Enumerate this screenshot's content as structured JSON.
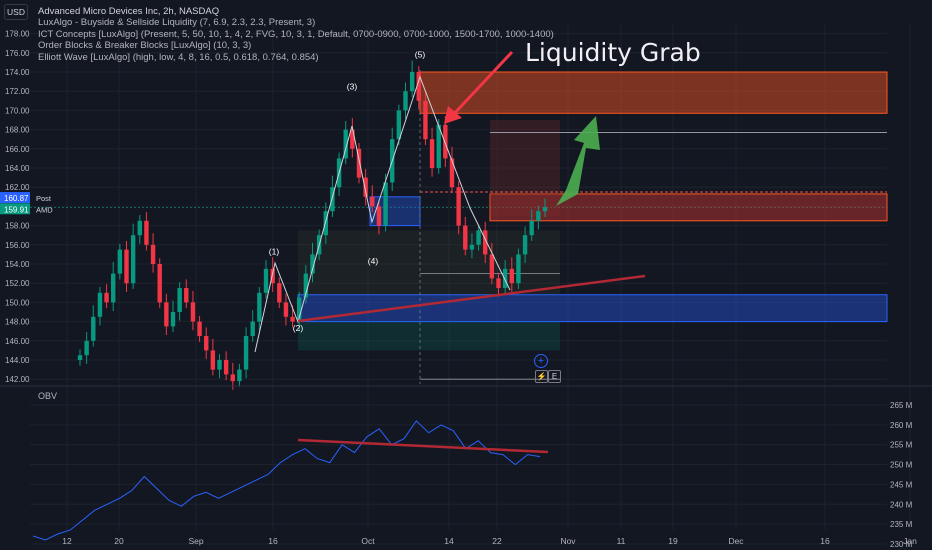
{
  "header": {
    "currency": "USD",
    "title": "Advanced Micro Devices Inc, 2h, NASDAQ",
    "indicators": [
      "LuxAlgo - Buyside & Sellside Liquidity (7, 6.9, 2.3, 2.3, Present, 3)",
      "ICT Concepts [LuxAlgo] (Present, 5, 50, 10, 1, 4, 2, FVG, 10, 3, 1, Default, 0700-0900, 0700-1000, 1500-1700, 1000-1400)",
      "Order Blocks & Breaker Blocks [LuxAlgo] (10, 3, 3)",
      "Elliott Wave [LuxAlgo] (high, low, 4, 8, 16, 0.5, 0.618, 0.764, 0.854)"
    ]
  },
  "annotation": "Liquidity Grab",
  "price_tags": {
    "post_label": "Post",
    "post_value": "160.87",
    "last_label": "AMD",
    "last_value": "159.91"
  },
  "obv_label": "OBV",
  "buttons": {
    "add": "+",
    "e": "E",
    "alert": "⚡"
  },
  "colors": {
    "up": "#089981",
    "down": "#f23645",
    "bullish_zone": "#2962ff",
    "bearish_zone": "#ff5722",
    "trendline": "#b22833",
    "arrow_red": "#f23645",
    "arrow_green": "#4caf50",
    "obv": "#2962ff"
  },
  "chart_data": {
    "type": "candlestick",
    "price_axis": {
      "ylim": [
        141.5,
        179.0
      ],
      "ticks": [
        "142.00",
        "144.00",
        "146.00",
        "148.00",
        "150.00",
        "152.00",
        "154.00",
        "156.00",
        "158.00",
        "160.00",
        "162.00",
        "164.00",
        "166.00",
        "168.00",
        "170.00",
        "172.00",
        "174.00",
        "176.00",
        "178.00"
      ]
    },
    "obv_axis": {
      "ticks": [
        "230 M",
        "235 M",
        "240 M",
        "245 M",
        "250 M",
        "255 M",
        "260 M",
        "265 M"
      ]
    },
    "time_axis": {
      "ticks": [
        "12",
        "20",
        "Sep",
        "16",
        "Oct",
        "14",
        "22",
        "Nov",
        "11",
        "19",
        "Dec",
        "16",
        "Jan"
      ]
    },
    "price_series": [
      {
        "name": "AMD",
        "close": [
          144.5,
          146.0,
          148.5,
          151.0,
          150.0,
          153.0,
          155.5,
          152.0,
          157.0,
          158.5,
          156.0,
          154.0,
          150.0,
          147.5,
          149.0,
          151.5,
          150.0,
          148.0,
          146.5,
          145.0,
          143.0,
          144.0,
          142.5,
          141.8,
          143.0,
          146.5,
          148.0,
          151.0,
          153.5,
          152.0,
          150.0,
          148.5,
          148.0,
          150.5,
          153.0,
          155.0,
          157.0,
          159.5,
          162.0,
          165.0,
          168.0,
          166.0,
          163.0,
          161.0,
          160.0,
          158.0,
          162.5,
          167.0,
          170.0,
          172.0,
          174.0,
          171.0,
          167.0,
          164.0,
          168.5,
          165.0,
          162.0,
          158.0,
          155.5,
          156.0,
          157.5,
          155.0,
          152.5,
          151.5,
          153.5,
          152.0,
          155.0,
          157.0,
          158.5,
          159.5,
          159.91
        ]
      }
    ],
    "obv_series": [
      232.0,
      231.0,
      232.5,
      233.5,
      236.0,
      238.5,
      240.0,
      241.5,
      243.5,
      247.0,
      244.0,
      241.0,
      239.5,
      242.0,
      243.0,
      241.5,
      243.0,
      244.5,
      246.0,
      247.5,
      250.5,
      252.5,
      254.0,
      251.5,
      250.5,
      255.0,
      253.0,
      257.0,
      259.0,
      255.0,
      256.5,
      261.0,
      258.0,
      260.0,
      258.5,
      254.0,
      256.0,
      253.0,
      252.5,
      250.0,
      252.5,
      252.0
    ],
    "elliott_labels": [
      {
        "text": "(1)",
        "price": 155.0,
        "date_idx": 17
      },
      {
        "text": "(2)",
        "price": 147.0,
        "date_idx": 20
      },
      {
        "text": "(3)",
        "price": 172.2,
        "date_idx": 23
      },
      {
        "text": "(4)",
        "price": 154.0,
        "date_idx": 25
      },
      {
        "text": "(5)",
        "price": 175.5,
        "date_idx": 28
      }
    ],
    "levels": [
      {
        "name": "Bearish OB top",
        "value": 174.0
      },
      {
        "name": "Bearish OB bottom",
        "value": 169.7
      },
      {
        "name": "Line",
        "value": 167.7
      },
      {
        "name": "Red zone top",
        "value": 161.3
      },
      {
        "name": "Red zone bottom",
        "value": 158.5
      },
      {
        "name": "Bullish OB top",
        "value": 150.8
      },
      {
        "name": "Bullish OB bottom",
        "value": 148.0
      }
    ]
  }
}
